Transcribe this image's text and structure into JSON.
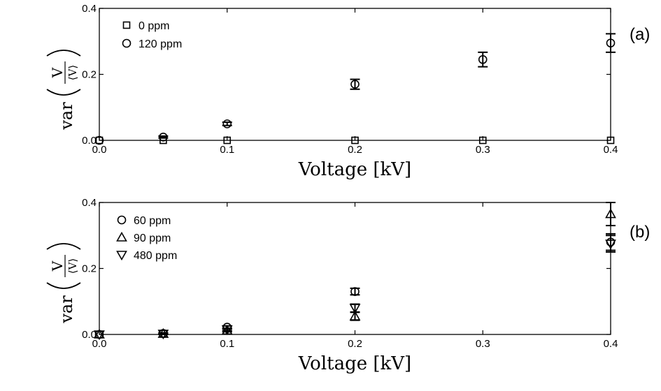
{
  "chart_data": [
    {
      "type": "scatter",
      "panel_label": "(a)",
      "xlabel": "Voltage [kV]",
      "ylabel": {
        "func": "var",
        "numerator": "V",
        "denominator": "⟨V⟩"
      },
      "xlim": [
        0.0,
        0.4
      ],
      "ylim": [
        0.0,
        0.4
      ],
      "xticks": [
        0.0,
        0.1,
        0.2,
        0.3,
        0.4
      ],
      "xtick_labels": [
        "0.0",
        "0.1",
        "0.2",
        "0.3",
        "0.4"
      ],
      "yticks": [
        0.0,
        0.2,
        0.4
      ],
      "ytick_labels": [
        "0.0",
        "0.2",
        "0.4"
      ],
      "grid": false,
      "legend_position": "top-left",
      "series": [
        {
          "name": "0 ppm",
          "marker": "square",
          "x": [
            0.0,
            0.05,
            0.1,
            0.2,
            0.3,
            0.4
          ],
          "y": [
            0.0,
            0.0,
            0.0,
            0.0,
            0.0,
            0.0
          ],
          "err": [
            0,
            0,
            0,
            0,
            0,
            0
          ]
        },
        {
          "name": "120 ppm",
          "marker": "circle",
          "x": [
            0.0,
            0.05,
            0.1,
            0.2,
            0.3,
            0.4
          ],
          "y": [
            0.0,
            0.01,
            0.05,
            0.17,
            0.245,
            0.295
          ],
          "err": [
            0.0,
            0.003,
            0.005,
            0.015,
            0.022,
            0.028
          ]
        }
      ]
    },
    {
      "type": "scatter",
      "panel_label": "(b)",
      "xlabel": "Voltage [kV]",
      "ylabel": {
        "func": "var",
        "numerator": "V",
        "denominator": "⟨V⟩"
      },
      "xlim": [
        0.0,
        0.4
      ],
      "ylim": [
        0.0,
        0.4
      ],
      "xticks": [
        0.0,
        0.1,
        0.2,
        0.3,
        0.4
      ],
      "xtick_labels": [
        "0.0",
        "0.1",
        "0.2",
        "0.3",
        "0.4"
      ],
      "yticks": [
        0.0,
        0.2,
        0.4
      ],
      "ytick_labels": [
        "0.0",
        "0.2",
        "0.4"
      ],
      "grid": false,
      "legend_position": "top-left",
      "series": [
        {
          "name": "60 ppm",
          "marker": "circle",
          "x": [
            0.0,
            0.05,
            0.1,
            0.2,
            0.4
          ],
          "y": [
            0.0,
            0.003,
            0.022,
            0.13,
            0.28
          ],
          "err": [
            0.0,
            0.002,
            0.004,
            0.01,
            0.025
          ]
        },
        {
          "name": "90 ppm",
          "marker": "triangle-up",
          "x": [
            0.0,
            0.05,
            0.1,
            0.2,
            0.4
          ],
          "y": [
            0.0,
            0.002,
            0.012,
            0.055,
            0.365
          ],
          "err": [
            0.0,
            0.002,
            0.004,
            0.012,
            0.035
          ]
        },
        {
          "name": "480 ppm",
          "marker": "triangle-down",
          "x": [
            0.0,
            0.05,
            0.1,
            0.2,
            0.4
          ],
          "y": [
            0.0,
            0.002,
            0.015,
            0.08,
            0.275
          ],
          "err": [
            0.0,
            0.002,
            0.004,
            0.012,
            0.025
          ]
        }
      ]
    }
  ]
}
